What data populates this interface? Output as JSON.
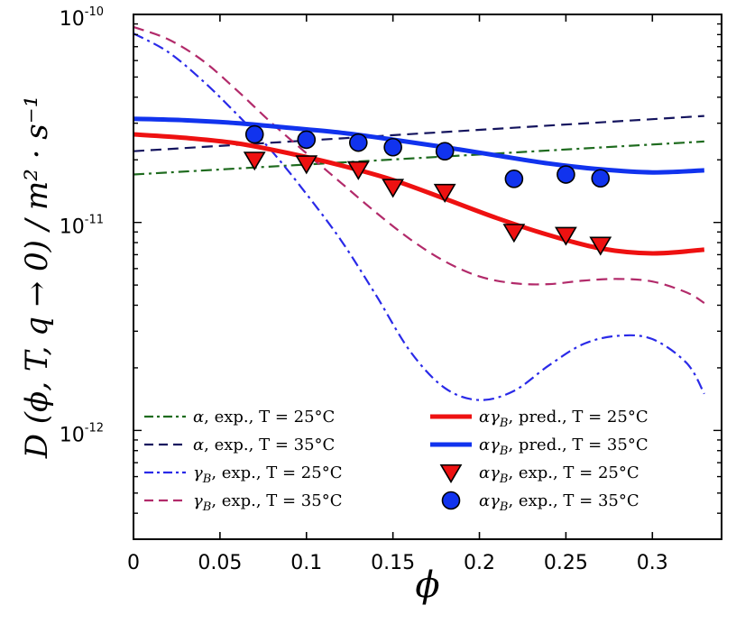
{
  "chart_data": {
    "type": "line",
    "xlabel": "ϕ",
    "ylabel": "D (ϕ, T, q → 0) / m² · s⁻¹",
    "xlim": [
      0,
      0.34
    ],
    "ylim": [
      3e-13,
      1e-10
    ],
    "yscale": "log",
    "x_ticks": [
      0,
      0.05,
      0.1,
      0.15,
      0.2,
      0.25,
      0.3
    ],
    "x_tick_labels": [
      "0",
      "0.05",
      "0.1",
      "0.15",
      "0.2",
      "0.25",
      "0.3"
    ],
    "y_ticks": [
      {
        "value": 1e-10,
        "base": "10",
        "exp": "-10"
      },
      {
        "value": 1e-11,
        "base": "10",
        "exp": "-11"
      },
      {
        "value": 1e-12,
        "base": "10",
        "exp": "-12"
      }
    ],
    "legend_position": "bottom-center",
    "series": [
      {
        "name": "alpha-exp-25",
        "label_symbol": "α",
        "label_text": ", exp., T = 25°C",
        "color": "#1e6b1e",
        "style": "dashdot",
        "width": 2.2,
        "x": [
          0,
          0.33
        ],
        "y": [
          1.7e-11,
          2.45e-11
        ]
      },
      {
        "name": "alpha-exp-35",
        "label_symbol": "α",
        "label_text": ", exp., T = 35°C",
        "color": "#14145e",
        "style": "dashed",
        "width": 2.2,
        "x": [
          0,
          0.33
        ],
        "y": [
          2.2e-11,
          3.25e-11
        ]
      },
      {
        "name": "gammaB-exp-25",
        "label_symbol": "γB",
        "label_text": ", exp., T = 25°C",
        "color": "#2a2ae8",
        "style": "dashdot",
        "width": 2.2,
        "x": [
          0,
          0.02,
          0.04,
          0.06,
          0.08,
          0.1,
          0.12,
          0.14,
          0.16,
          0.18,
          0.2,
          0.22,
          0.24,
          0.26,
          0.28,
          0.3,
          0.32,
          0.33
        ],
        "y": [
          8.1e-11,
          6.6e-11,
          4.8e-11,
          3.3e-11,
          2.2e-11,
          1.37e-11,
          8.2e-12,
          4.5e-12,
          2.4e-12,
          1.6e-12,
          1.4e-12,
          1.55e-12,
          2.05e-12,
          2.6e-12,
          2.85e-12,
          2.75e-12,
          2.1e-12,
          1.5e-12
        ]
      },
      {
        "name": "gammaB-exp-35",
        "label_symbol": "γB",
        "label_text": ", exp., T = 35°C",
        "color": "#b22a6a",
        "style": "dashed",
        "width": 2.2,
        "x": [
          0,
          0.02,
          0.04,
          0.06,
          0.08,
          0.1,
          0.12,
          0.14,
          0.16,
          0.18,
          0.2,
          0.22,
          0.24,
          0.26,
          0.28,
          0.3,
          0.32,
          0.33
        ],
        "y": [
          8.7e-11,
          7.6e-11,
          6e-11,
          4.3e-11,
          3e-11,
          2.15e-11,
          1.55e-11,
          1.12e-11,
          8.3e-12,
          6.5e-12,
          5.5e-12,
          5.1e-12,
          5.05e-12,
          5.25e-12,
          5.35e-12,
          5.2e-12,
          4.6e-12,
          4.1e-12
        ]
      },
      {
        "name": "pred-25",
        "label_symbol": "αγB",
        "label_text": ", pred., T = 25°C",
        "color": "#ee1111",
        "style": "solid",
        "width": 5,
        "x": [
          0,
          0.03,
          0.06,
          0.09,
          0.12,
          0.15,
          0.18,
          0.21,
          0.24,
          0.27,
          0.3,
          0.33
        ],
        "y": [
          2.65e-11,
          2.55e-11,
          2.4e-11,
          2.15e-11,
          1.88e-11,
          1.6e-11,
          1.3e-11,
          1.05e-11,
          8.7e-12,
          7.5e-12,
          7.1e-12,
          7.4e-12
        ]
      },
      {
        "name": "pred-35",
        "label_symbol": "αγB",
        "label_text": ", pred., T = 35°C",
        "color": "#1133ee",
        "style": "solid",
        "width": 5,
        "x": [
          0,
          0.03,
          0.06,
          0.09,
          0.12,
          0.15,
          0.18,
          0.21,
          0.24,
          0.27,
          0.3,
          0.33
        ],
        "y": [
          3.15e-11,
          3.1e-11,
          3e-11,
          2.85e-11,
          2.7e-11,
          2.5e-11,
          2.3e-11,
          2.1e-11,
          1.92e-11,
          1.8e-11,
          1.74e-11,
          1.78e-11
        ]
      }
    ],
    "scatter": [
      {
        "name": "exp-25",
        "label_symbol": "αγB",
        "label_text": ", exp., T = 25°C",
        "color": "#ee1111",
        "marker": "triangle-down",
        "x": [
          0.07,
          0.1,
          0.13,
          0.15,
          0.18,
          0.22,
          0.25,
          0.27
        ],
        "y": [
          2e-11,
          1.92e-11,
          1.8e-11,
          1.48e-11,
          1.4e-11,
          9e-12,
          8.7e-12,
          7.8e-12
        ]
      },
      {
        "name": "exp-35",
        "label_symbol": "αγB",
        "label_text": ", exp., T = 35°C",
        "color": "#1133ee",
        "marker": "circle",
        "x": [
          0.07,
          0.1,
          0.13,
          0.15,
          0.18,
          0.22,
          0.25,
          0.27
        ],
        "y": [
          2.65e-11,
          2.5e-11,
          2.42e-11,
          2.3e-11,
          2.2e-11,
          1.62e-11,
          1.7e-11,
          1.63e-11
        ]
      }
    ]
  }
}
